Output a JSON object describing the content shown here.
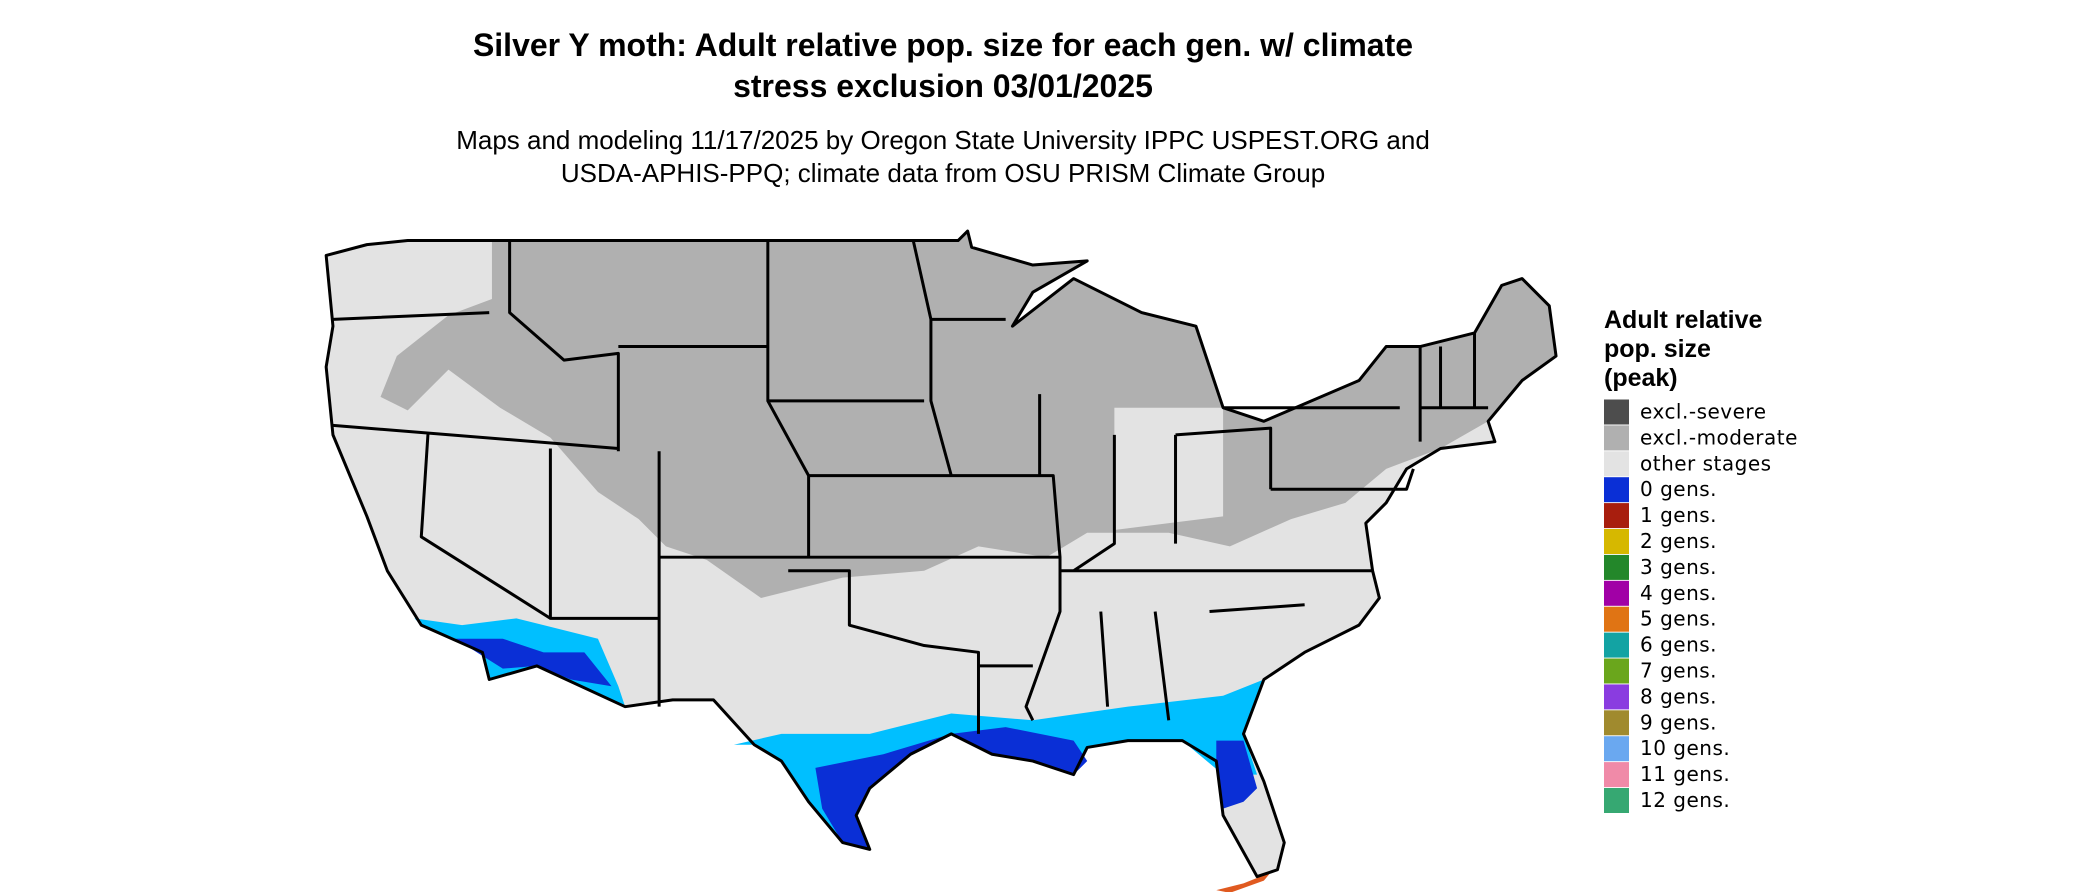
{
  "header": {
    "title_lines": [
      "Silver Y moth: Adult relative pop. size for each gen. w/ climate",
      "stress exclusion 03/01/2025"
    ],
    "subtitle_lines": [
      "Maps and modeling 11/17/2025 by Oregon State University IPPC USPEST.ORG and",
      "USDA-APHIS-PPQ; climate data from OSU PRISM Climate Group"
    ]
  },
  "legend": {
    "title_lines": [
      "Adult relative",
      "pop. size",
      "(peak)"
    ],
    "items": [
      {
        "label": "excl.-severe",
        "color": "#4d4d4d"
      },
      {
        "label": "excl.-moderate",
        "color": "#b0b0b0"
      },
      {
        "label": "other stages",
        "color": "#e3e3e3"
      },
      {
        "label": "0 gens.",
        "color": "#0a2fd6"
      },
      {
        "label": "1 gens.",
        "color": "#a81e0e"
      },
      {
        "label": "2 gens.",
        "color": "#d6b800"
      },
      {
        "label": "3 gens.",
        "color": "#23872a"
      },
      {
        "label": "4 gens.",
        "color": "#a100a6"
      },
      {
        "label": "5 gens.",
        "color": "#e07414"
      },
      {
        "label": "6 gens.",
        "color": "#13a3a3"
      },
      {
        "label": "7 gens.",
        "color": "#6aa61c"
      },
      {
        "label": "8 gens.",
        "color": "#8a3ce0"
      },
      {
        "label": "9 gens.",
        "color": "#a08a2e"
      },
      {
        "label": "10 gens.",
        "color": "#6aa8f0"
      },
      {
        "label": "11 gens.",
        "color": "#f08aa8"
      },
      {
        "label": "12 gens.",
        "color": "#36a872"
      }
    ]
  }
}
